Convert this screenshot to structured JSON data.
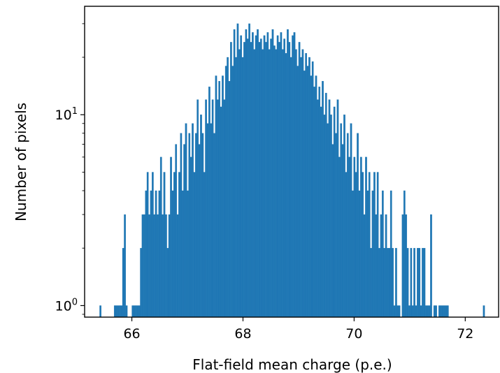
{
  "chart_data": {
    "type": "bar",
    "title": "",
    "xlabel": "Flat-field mean charge (p.e.)",
    "ylabel": "Number of pixels",
    "yscale": "log",
    "xlim": [
      65.15,
      72.6
    ],
    "ylim": [
      0.87,
      37
    ],
    "grid": false,
    "color": "#1f77b4",
    "bin_width": 0.03,
    "x_ticks": [
      {
        "value": 66,
        "label": "66"
      },
      {
        "value": 68,
        "label": "68"
      },
      {
        "value": 70,
        "label": "70"
      },
      {
        "value": 72,
        "label": "72"
      }
    ],
    "y_ticks": [
      {
        "value": 1,
        "base": "10",
        "exp": "0"
      },
      {
        "value": 10,
        "base": "10",
        "exp": "1"
      }
    ],
    "bins": [
      [
        65.42,
        1
      ],
      [
        65.68,
        1
      ],
      [
        65.71,
        1
      ],
      [
        65.74,
        1
      ],
      [
        65.77,
        1
      ],
      [
        65.8,
        1
      ],
      [
        65.83,
        2
      ],
      [
        65.86,
        3
      ],
      [
        65.89,
        1
      ],
      [
        66.0,
        1
      ],
      [
        66.03,
        1
      ],
      [
        66.06,
        1
      ],
      [
        66.09,
        1
      ],
      [
        66.12,
        1
      ],
      [
        66.15,
        2
      ],
      [
        66.18,
        3
      ],
      [
        66.21,
        3
      ],
      [
        66.24,
        4
      ],
      [
        66.27,
        5
      ],
      [
        66.3,
        3
      ],
      [
        66.33,
        4
      ],
      [
        66.36,
        5
      ],
      [
        66.39,
        3
      ],
      [
        66.42,
        4
      ],
      [
        66.45,
        3
      ],
      [
        66.48,
        4
      ],
      [
        66.51,
        6
      ],
      [
        66.54,
        3
      ],
      [
        66.57,
        5
      ],
      [
        66.6,
        3
      ],
      [
        66.63,
        2
      ],
      [
        66.66,
        3
      ],
      [
        66.69,
        6
      ],
      [
        66.72,
        4
      ],
      [
        66.75,
        5
      ],
      [
        66.78,
        7
      ],
      [
        66.81,
        3
      ],
      [
        66.84,
        5
      ],
      [
        66.87,
        8
      ],
      [
        66.9,
        4
      ],
      [
        66.93,
        7
      ],
      [
        66.96,
        9
      ],
      [
        66.99,
        4
      ],
      [
        67.02,
        8
      ],
      [
        67.05,
        6
      ],
      [
        67.08,
        9
      ],
      [
        67.11,
        5
      ],
      [
        67.14,
        8
      ],
      [
        67.17,
        12
      ],
      [
        67.2,
        7
      ],
      [
        67.23,
        10
      ],
      [
        67.26,
        8
      ],
      [
        67.29,
        5
      ],
      [
        67.32,
        12
      ],
      [
        67.35,
        9
      ],
      [
        67.38,
        14
      ],
      [
        67.41,
        9
      ],
      [
        67.44,
        12
      ],
      [
        67.47,
        8
      ],
      [
        67.5,
        16
      ],
      [
        67.53,
        12
      ],
      [
        67.56,
        15
      ],
      [
        67.59,
        11
      ],
      [
        67.62,
        16
      ],
      [
        67.65,
        12
      ],
      [
        67.68,
        18
      ],
      [
        67.71,
        20
      ],
      [
        67.74,
        15
      ],
      [
        67.77,
        24
      ],
      [
        67.8,
        18
      ],
      [
        67.83,
        28
      ],
      [
        67.86,
        20
      ],
      [
        67.89,
        30
      ],
      [
        67.92,
        22
      ],
      [
        67.95,
        26
      ],
      [
        67.98,
        20
      ],
      [
        68.01,
        24
      ],
      [
        68.04,
        28
      ],
      [
        68.07,
        25
      ],
      [
        68.1,
        30
      ],
      [
        68.13,
        24
      ],
      [
        68.16,
        27
      ],
      [
        68.19,
        22
      ],
      [
        68.22,
        26
      ],
      [
        68.25,
        28
      ],
      [
        68.28,
        24
      ],
      [
        68.31,
        25
      ],
      [
        68.34,
        22
      ],
      [
        68.37,
        26
      ],
      [
        68.4,
        24
      ],
      [
        68.43,
        27
      ],
      [
        68.46,
        22
      ],
      [
        68.49,
        25
      ],
      [
        68.52,
        28
      ],
      [
        68.55,
        23
      ],
      [
        68.58,
        22
      ],
      [
        68.61,
        26
      ],
      [
        68.64,
        24
      ],
      [
        68.67,
        27
      ],
      [
        68.7,
        22
      ],
      [
        68.73,
        25
      ],
      [
        68.76,
        21
      ],
      [
        68.79,
        28
      ],
      [
        68.82,
        24
      ],
      [
        68.85,
        20
      ],
      [
        68.88,
        26
      ],
      [
        68.91,
        27
      ],
      [
        68.94,
        22
      ],
      [
        68.97,
        18
      ],
      [
        69.0,
        24
      ],
      [
        69.03,
        20
      ],
      [
        69.06,
        22
      ],
      [
        69.09,
        17
      ],
      [
        69.12,
        21
      ],
      [
        69.15,
        18
      ],
      [
        69.18,
        20
      ],
      [
        69.21,
        16
      ],
      [
        69.24,
        19
      ],
      [
        69.27,
        14
      ],
      [
        69.3,
        16
      ],
      [
        69.33,
        12
      ],
      [
        69.36,
        14
      ],
      [
        69.39,
        11
      ],
      [
        69.42,
        15
      ],
      [
        69.45,
        10
      ],
      [
        69.48,
        13
      ],
      [
        69.51,
        9
      ],
      [
        69.54,
        12
      ],
      [
        69.57,
        10
      ],
      [
        69.6,
        7
      ],
      [
        69.63,
        11
      ],
      [
        69.66,
        8
      ],
      [
        69.69,
        12
      ],
      [
        69.72,
        6
      ],
      [
        69.75,
        9
      ],
      [
        69.78,
        7
      ],
      [
        69.81,
        10
      ],
      [
        69.84,
        5
      ],
      [
        69.87,
        8
      ],
      [
        69.9,
        6
      ],
      [
        69.93,
        9
      ],
      [
        69.96,
        4
      ],
      [
        69.99,
        6
      ],
      [
        70.02,
        5
      ],
      [
        70.05,
        8
      ],
      [
        70.08,
        4
      ],
      [
        70.11,
        6
      ],
      [
        70.14,
        5
      ],
      [
        70.17,
        3
      ],
      [
        70.2,
        6
      ],
      [
        70.23,
        4
      ],
      [
        70.26,
        5
      ],
      [
        70.29,
        2
      ],
      [
        70.32,
        4
      ],
      [
        70.35,
        5
      ],
      [
        70.38,
        3
      ],
      [
        70.41,
        5
      ],
      [
        70.44,
        2
      ],
      [
        70.47,
        3
      ],
      [
        70.5,
        4
      ],
      [
        70.53,
        2
      ],
      [
        70.56,
        3
      ],
      [
        70.59,
        2
      ],
      [
        70.62,
        2
      ],
      [
        70.65,
        4
      ],
      [
        70.68,
        2
      ],
      [
        70.71,
        1
      ],
      [
        70.74,
        2
      ],
      [
        70.77,
        1
      ],
      [
        70.8,
        1
      ],
      [
        70.86,
        3
      ],
      [
        70.89,
        4
      ],
      [
        70.92,
        3
      ],
      [
        70.95,
        2
      ],
      [
        70.98,
        1
      ],
      [
        71.01,
        2
      ],
      [
        71.04,
        1
      ],
      [
        71.07,
        2
      ],
      [
        71.1,
        1
      ],
      [
        71.13,
        2
      ],
      [
        71.16,
        2
      ],
      [
        71.19,
        1
      ],
      [
        71.22,
        2
      ],
      [
        71.25,
        2
      ],
      [
        71.28,
        1
      ],
      [
        71.31,
        1
      ],
      [
        71.34,
        1
      ],
      [
        71.37,
        3
      ],
      [
        71.43,
        1
      ],
      [
        71.46,
        1
      ],
      [
        71.52,
        1
      ],
      [
        71.55,
        1
      ],
      [
        71.58,
        1
      ],
      [
        71.61,
        1
      ],
      [
        71.64,
        1
      ],
      [
        71.67,
        1
      ],
      [
        72.32,
        1
      ]
    ]
  }
}
